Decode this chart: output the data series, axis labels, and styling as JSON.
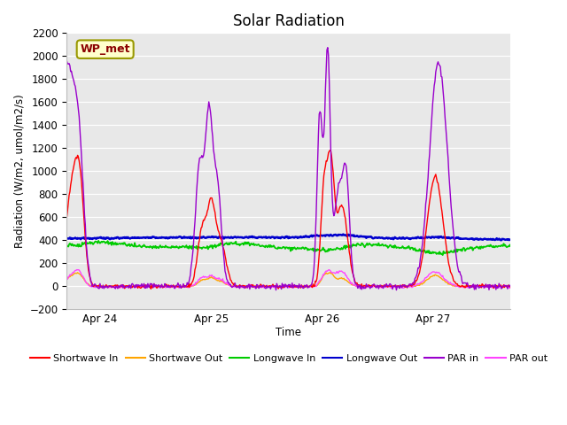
{
  "title": "Solar Radiation",
  "ylabel": "Radiation (W/m2, umol/m2/s)",
  "xlabel": "Time",
  "ylim": [
    -200,
    2200
  ],
  "yticks": [
    -200,
    0,
    200,
    400,
    600,
    800,
    1000,
    1200,
    1400,
    1600,
    1800,
    2000,
    2200
  ],
  "background_color": "#e8e8e8",
  "annotation": "WP_met",
  "annotation_box_color": "#ffffcc",
  "annotation_text_color": "#8b0000",
  "series_colors": {
    "shortwave_in": "#ff0000",
    "shortwave_out": "#ffa500",
    "longwave_in": "#00cc00",
    "longwave_out": "#0000cd",
    "par_in": "#9900cc",
    "par_out": "#ff44ff"
  },
  "legend_labels": [
    "Shortwave In",
    "Shortwave Out",
    "Longwave In",
    "Longwave Out",
    "PAR in",
    "PAR out"
  ],
  "day_labels": [
    "Apr 24",
    "Apr 25",
    "Apr 26",
    "Apr 27"
  ],
  "figsize": [
    6.4,
    4.8
  ],
  "dpi": 100
}
